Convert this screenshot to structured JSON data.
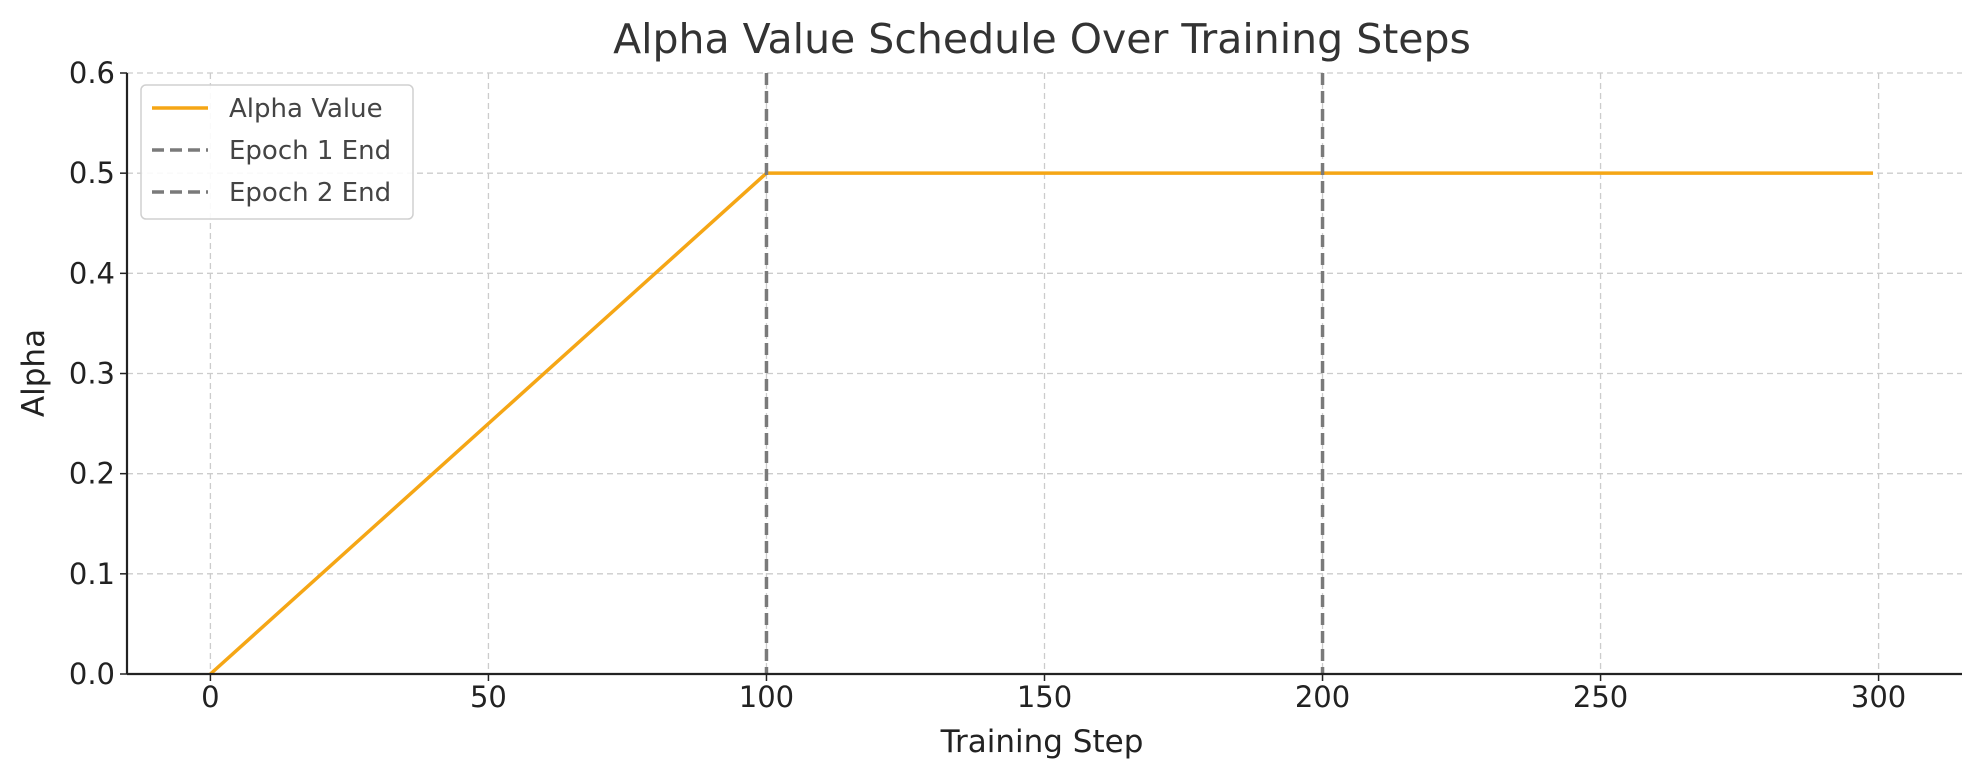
{
  "chart_data": {
    "type": "line",
    "title": "Alpha Value Schedule Over Training Steps",
    "xlabel": "Training Step",
    "ylabel": "Alpha",
    "xlim": [
      -15,
      315
    ],
    "ylim": [
      0,
      0.6
    ],
    "x_ticks": [
      0,
      50,
      100,
      150,
      200,
      250,
      300
    ],
    "x_tick_labels": [
      "0",
      "50",
      "100",
      "150",
      "200",
      "250",
      "300"
    ],
    "y_ticks": [
      0.0,
      0.1,
      0.2,
      0.3,
      0.4,
      0.5,
      0.6
    ],
    "y_tick_labels": [
      "0.0",
      "0.1",
      "0.2",
      "0.3",
      "0.4",
      "0.5",
      "0.6"
    ],
    "grid": true,
    "legend_position": "top-left",
    "series": [
      {
        "name": "Alpha Value",
        "color": "#f5a615",
        "style": "solid",
        "x": [
          0,
          100,
          299
        ],
        "y": [
          0.0,
          0.5,
          0.5
        ]
      }
    ],
    "vlines": [
      {
        "name": "Epoch 1 End",
        "x": 100,
        "color": "#7a7a7a",
        "style": "dashed"
      },
      {
        "name": "Epoch 2 End",
        "x": 200,
        "color": "#7a7a7a",
        "style": "dashed"
      }
    ],
    "legend": [
      "Alpha Value",
      "Epoch 1 End",
      "Epoch 2 End"
    ]
  }
}
